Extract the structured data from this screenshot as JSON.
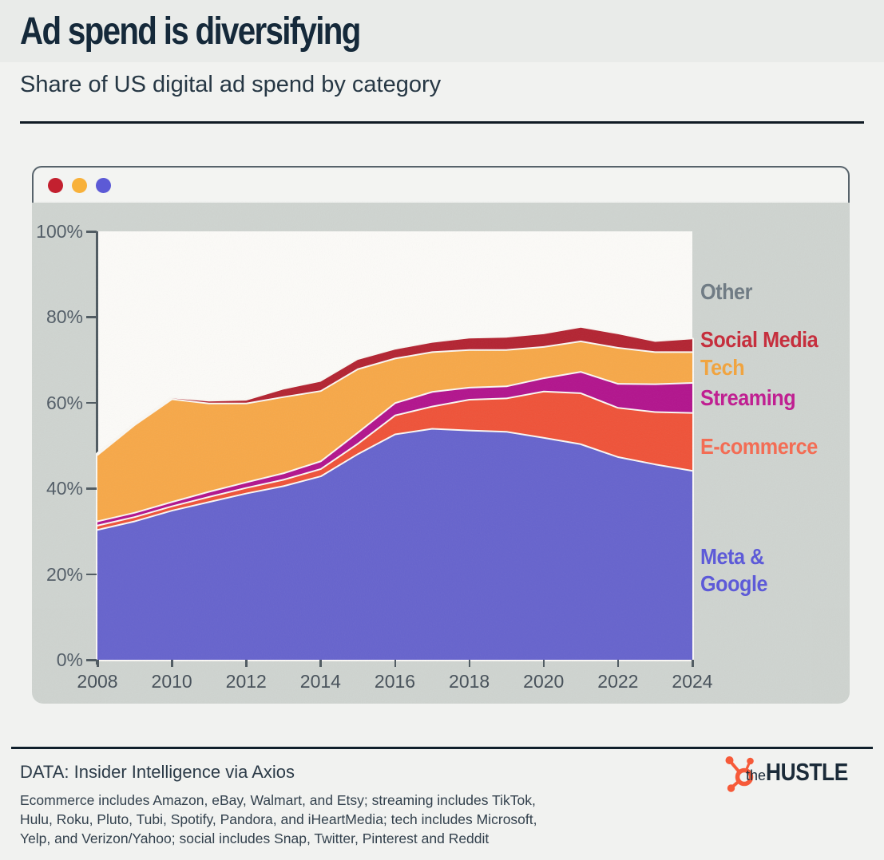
{
  "page": {
    "title": "Ad spend is diversifying",
    "subtitle": "Share of US digital ad spend by category"
  },
  "window": {
    "traffic_light_colors": [
      "#c3202f",
      "#f8b13a",
      "#5c5ad6"
    ]
  },
  "chart_data": {
    "type": "area",
    "stacked": true,
    "title": "Share of US digital ad spend by category",
    "x": [
      2008,
      2009,
      2010,
      2011,
      2012,
      2013,
      2014,
      2015,
      2016,
      2017,
      2018,
      2019,
      2020,
      2021,
      2022,
      2023,
      2024
    ],
    "x_ticks": [
      2008,
      2010,
      2012,
      2014,
      2016,
      2018,
      2020,
      2022,
      2024
    ],
    "y_ticks_percent": [
      0,
      20,
      40,
      60,
      80,
      100
    ],
    "ylim": [
      0,
      100
    ],
    "y_tick_suffix": "%",
    "grid": false,
    "band_outline_color": "#faf8f4",
    "plot_background": "#fcfbf8",
    "series": [
      {
        "name": "Meta & Google",
        "color": "#6663cd",
        "values": [
          30.5,
          32.5,
          35.0,
          37.0,
          39.0,
          40.7,
          43.0,
          48.2,
          52.8,
          54.1,
          53.7,
          53.4,
          52.0,
          50.5,
          47.5,
          45.8,
          44.3
        ]
      },
      {
        "name": "E-commerce",
        "color": "#ef5238",
        "values": [
          1.0,
          1.0,
          1.0,
          1.2,
          1.3,
          1.5,
          1.7,
          2.4,
          4.4,
          5.2,
          7.2,
          7.8,
          10.8,
          11.9,
          11.5,
          12.2,
          13.5
        ]
      },
      {
        "name": "Streaming",
        "color": "#b2138d",
        "values": [
          1.0,
          1.0,
          1.0,
          1.2,
          1.3,
          1.5,
          1.8,
          2.6,
          2.9,
          3.4,
          2.8,
          2.8,
          3.1,
          5.0,
          5.6,
          6.5,
          7.0
        ]
      },
      {
        "name": "Tech",
        "color": "#f7a848",
        "values": [
          15.5,
          20.5,
          24.0,
          20.6,
          18.4,
          17.8,
          16.4,
          14.8,
          10.4,
          9.3,
          8.8,
          8.5,
          7.3,
          7.1,
          8.4,
          7.5,
          7.2
        ]
      },
      {
        "name": "Social Media",
        "color": "#b32331",
        "values": [
          0.0,
          0.0,
          0.0,
          0.3,
          0.5,
          1.6,
          2.0,
          2.0,
          1.9,
          2.0,
          2.5,
          2.7,
          2.8,
          3.0,
          3.0,
          2.2,
          2.8
        ]
      }
    ],
    "remainder_category": "Other",
    "legend_position": "right"
  },
  "legend": {
    "items": [
      {
        "label": "Other",
        "color": "#6e7a83"
      },
      {
        "label": "Social Media",
        "color": "#c62a39"
      },
      {
        "label": "Tech",
        "color": "#f2a33c"
      },
      {
        "label": "Streaming",
        "color": "#c01a90"
      },
      {
        "label": "E-commerce",
        "color": "#f56a51"
      },
      {
        "label": "Meta & Google",
        "color": "#5a57d9"
      }
    ]
  },
  "footer": {
    "source": "DATA: Insider Intelligence via Axios",
    "note_lines": [
      "Ecommerce includes Amazon, eBay, Walmart, and Etsy; streaming includes TikTok,",
      "Hulu, Roku, Pluto, Tubi, Spotify, Pandora, and iHeartMedia; tech includes Microsoft,",
      "Yelp, and Verizon/Yahoo; social includes Snap, Twitter, Pinterest and Reddit"
    ],
    "brand": {
      "the": "the",
      "name": "HUSTLE",
      "logo_color": "#f65a39"
    }
  }
}
